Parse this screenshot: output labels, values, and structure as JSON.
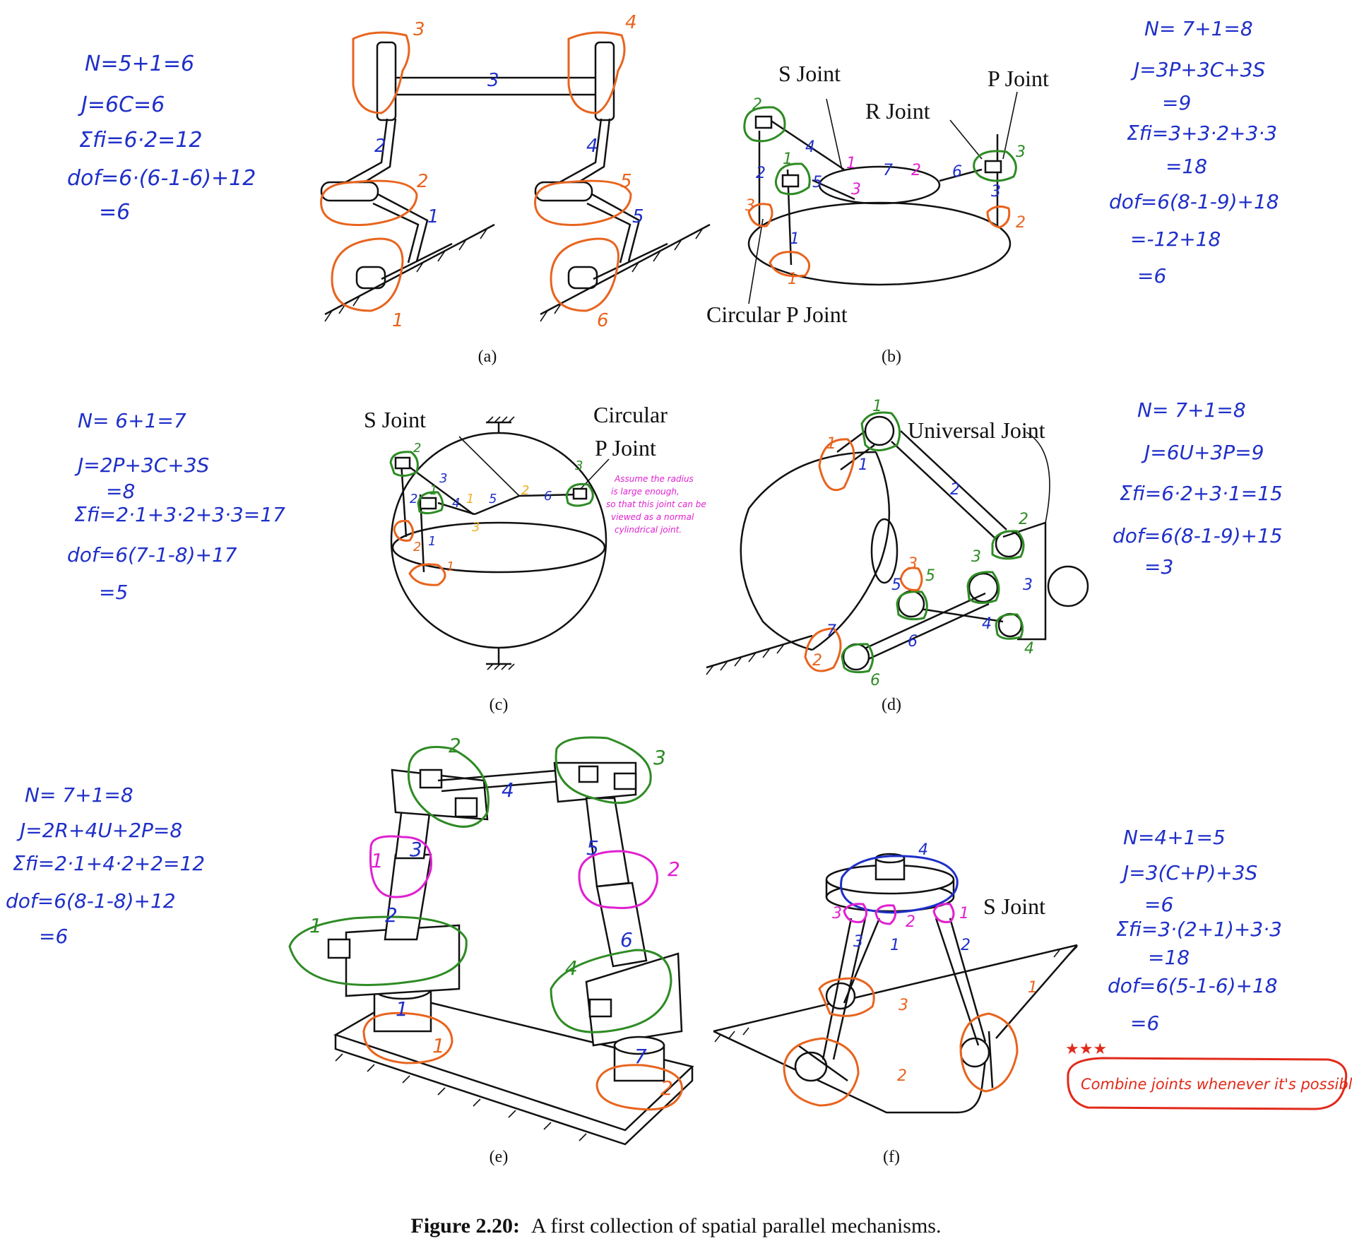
{
  "caption": {
    "bold": "Figure 2.20:",
    "text": "A first collection of spatial parallel mechanisms."
  },
  "panels": {
    "a": {
      "label": "(a)",
      "notes": [
        "N=5+1=6",
        "J=6C=6",
        "Σfi=6·2=12",
        "dof=6·(6-1-6)+12",
        "=6"
      ],
      "numbers": [
        "1",
        "2",
        "3",
        "4",
        "5",
        "6"
      ]
    },
    "b": {
      "label": "(b)",
      "joint_labels": [
        "S Joint",
        "P Joint",
        "R Joint",
        "Circular P Joint"
      ],
      "notes": [
        "N= 7+1=8",
        "J=3P+3C+3S",
        "=9",
        "Σfi=3+3·2+3·3",
        "=18",
        "dof=6(8-1-9)+18",
        "=-12+18",
        "=6"
      ],
      "numbers": [
        "1",
        "2",
        "3",
        "4",
        "5",
        "6",
        "7"
      ]
    },
    "c": {
      "label": "(c)",
      "joint_labels": [
        "S Joint",
        "Circular",
        "P Joint"
      ],
      "assumption": [
        "Assume the radius",
        "is large enough,",
        "so that this joint can be",
        "viewed as a normal",
        "cylindrical joint."
      ],
      "notes": [
        "N= 6+1=7",
        "J=2P+3C+3S",
        "=8",
        "Σfi=2·1+3·2+3·3=17",
        "dof=6(7-1-8)+17",
        "=5"
      ],
      "numbers": [
        "1",
        "2",
        "3",
        "4",
        "5",
        "6"
      ]
    },
    "d": {
      "label": "(d)",
      "joint_labels": [
        "Universal Joint"
      ],
      "notes": [
        "N= 7+1=8",
        "J=6U+3P=9",
        "Σfi=6·2+3·1=15",
        "dof=6(8-1-9)+15",
        "=3"
      ],
      "numbers": [
        "1",
        "2",
        "3",
        "4",
        "5",
        "6",
        "7"
      ]
    },
    "e": {
      "label": "(e)",
      "notes": [
        "N= 7+1=8",
        "J=2R+4U+2P=8",
        "Σfi=2·1+4·2+2=12",
        "dof=6(8-1-8)+12",
        "=6"
      ],
      "numbers": [
        "1",
        "2",
        "3",
        "4",
        "5",
        "6",
        "7"
      ]
    },
    "f": {
      "label": "(f)",
      "joint_labels": [
        "S Joint"
      ],
      "notes": [
        "N=4+1=5",
        "J=3(C+P)+3S",
        "=6",
        "Σfi=3·(2+1)+3·3",
        "=18",
        "dof=6(5-1-6)+18",
        "=6"
      ],
      "reminder": "Combine joints whenever it's possible!",
      "numbers": [
        "1",
        "2",
        "3",
        "4"
      ]
    }
  },
  "colors": {
    "ink": "#111111",
    "blue": "#1f2fc8",
    "orange": "#e8641e",
    "green": "#2e8b24",
    "magenta": "#e020d0",
    "yellow": "#f0b020",
    "red": "#e12a1a"
  }
}
